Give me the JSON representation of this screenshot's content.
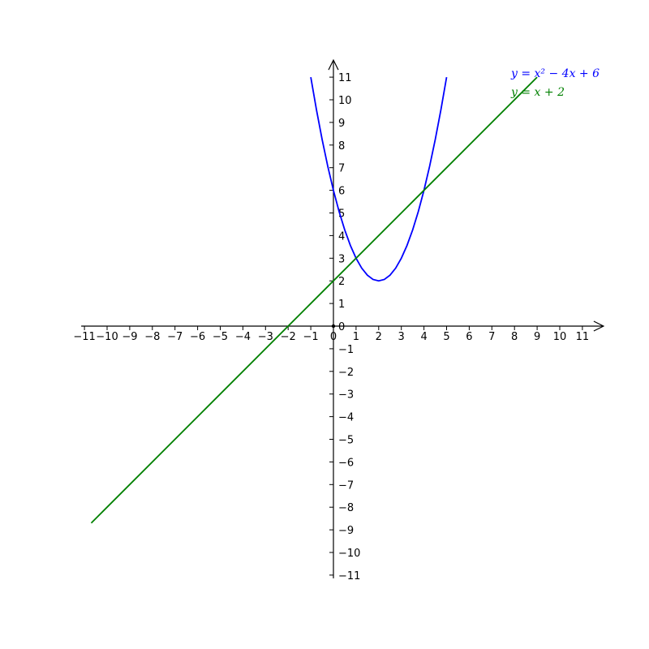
{
  "chart_data": {
    "type": "line",
    "title": "",
    "xlabel": "",
    "ylabel": "",
    "xlim": [
      -11,
      11
    ],
    "ylim": [
      -11,
      11
    ],
    "x_ticks": [
      "−11",
      "−10",
      "−9",
      "−8",
      "−7",
      "−6",
      "−5",
      "−4",
      "−3",
      "−2",
      "−1",
      "0",
      "1",
      "2",
      "3",
      "4",
      "5",
      "6",
      "7",
      "8",
      "9",
      "10",
      "11"
    ],
    "y_ticks": [
      "−11",
      "−10",
      "−9",
      "−8",
      "−7",
      "−6",
      "−5",
      "−4",
      "−3",
      "−2",
      "−1",
      "0",
      "1",
      "2",
      "3",
      "4",
      "5",
      "6",
      "7",
      "8",
      "9",
      "10",
      "11"
    ],
    "grid": false,
    "legend_position": "top-right",
    "axis_style": "centered axes with arrowheads",
    "series": [
      {
        "name": "y = x² − 4x + 6",
        "color": "#0000ff",
        "expression": "x^2 - 4x + 6",
        "x": [
          -1,
          -0.75,
          -0.5,
          -0.25,
          0,
          0.25,
          0.5,
          0.75,
          1,
          1.25,
          1.5,
          1.75,
          2,
          2.25,
          2.5,
          2.75,
          3,
          3.25,
          3.5,
          3.75,
          4,
          4.25,
          4.5,
          4.75,
          5
        ],
        "y": [
          11,
          9.5625,
          8.25,
          7.0625,
          6,
          5.0625,
          4.25,
          3.5625,
          3,
          2.5625,
          2.25,
          2.0625,
          2,
          2.0625,
          2.25,
          2.5625,
          3,
          3.5625,
          4.25,
          5.0625,
          6,
          7.0625,
          8.25,
          9.5625,
          11
        ]
      },
      {
        "name": "y = x + 2",
        "color": "#008000",
        "expression": "x + 2",
        "x": [
          -10.7,
          9
        ],
        "y": [
          -8.7,
          11
        ]
      }
    ]
  }
}
